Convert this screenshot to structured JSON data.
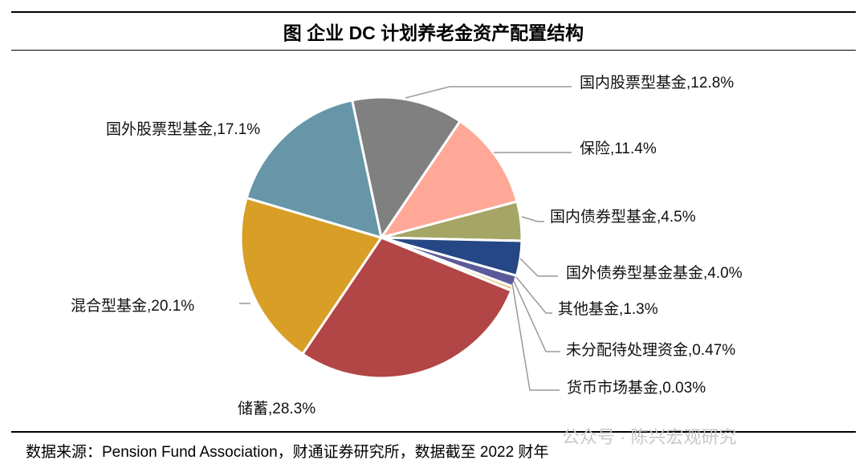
{
  "chart_data": {
    "type": "pie",
    "title": "图  企业 DC 计划养老金资产配置结构",
    "slices": [
      {
        "label": "国内股票型基金",
        "value": 12.8,
        "display": "国内股票型基金,12.8%",
        "color": "#808080"
      },
      {
        "label": "保险",
        "value": 11.4,
        "display": "保险,11.4%",
        "color": "#FFA897"
      },
      {
        "label": "国内债券型基金",
        "value": 4.5,
        "display": "国内债券型基金,4.5%",
        "color": "#A5A565"
      },
      {
        "label": "国外债券型基金基金",
        "value": 4.0,
        "display": "国外债券型基金基金,4.0%",
        "color": "#254785"
      },
      {
        "label": "其他基金",
        "value": 1.3,
        "display": "其他基金,1.3%",
        "color": "#5B5B9B"
      },
      {
        "label": "未分配待处理资金",
        "value": 0.47,
        "display": "未分配待处理资金,0.47%",
        "color": "#F0C080"
      },
      {
        "label": "货币市场基金",
        "value": 0.03,
        "display": "货币市场基金,0.03%",
        "color": "#E0E0E0"
      },
      {
        "label": "储蓄",
        "value": 28.3,
        "display": "储蓄,28.3%",
        "color": "#B24545"
      },
      {
        "label": "混合型基金",
        "value": 20.1,
        "display": "混合型基金,20.1%",
        "color": "#D89E26"
      },
      {
        "label": "国外股票型基金",
        "value": 17.1,
        "display": "国外股票型基金,17.1%",
        "color": "#6696A8"
      }
    ],
    "unit": "%"
  },
  "source": "数据来源：Pension Fund Association，财通证券研究所，数据截至 2022 财年",
  "watermark": "公众号 · 陈兴宏观研究"
}
